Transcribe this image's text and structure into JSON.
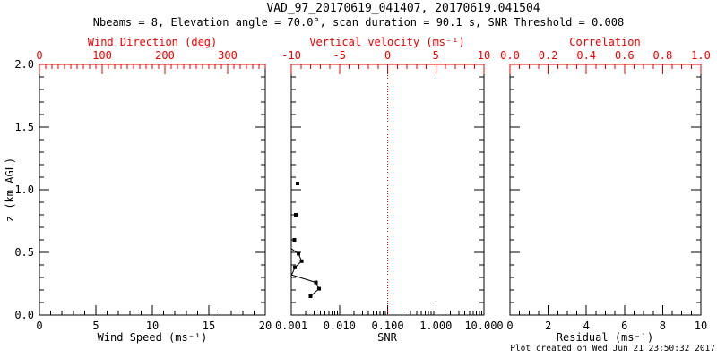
{
  "header": {
    "title": "VAD_97_20170619_041407, 20170619.041504",
    "subtitle": "Nbeams = 8, Elevation angle = 70.0°, scan duration = 90.1 s, SNR Threshold = 0.008"
  },
  "footer": {
    "created": "Plot created on Wed Jun 21 23:50:32 2017"
  },
  "colors": {
    "primary_axis": "#000000",
    "secondary_axis": "#ee0000",
    "background": "#ffffff",
    "data": "#000000"
  },
  "y_axis": {
    "label": "z (km AGL)",
    "min": 0,
    "max": 2,
    "tick_values": [
      0,
      0.5,
      1,
      1.5,
      2
    ],
    "tick_labels": [
      "0.0",
      "0.5",
      "1.0",
      "1.5",
      "2.0"
    ],
    "minor_step": 0.1
  },
  "chart_data": [
    {
      "panel": "wind",
      "type": "scatter",
      "bottom_axis": {
        "label": "Wind Speed (ms⁻¹)",
        "min": 0,
        "max": 20,
        "tick_values": [
          0,
          5,
          10,
          15,
          20
        ],
        "tick_labels": [
          "0",
          "5",
          "10",
          "15",
          "20"
        ],
        "minor_step": 1,
        "color": "#000000"
      },
      "top_axis": {
        "label": "Wind Direction (deg)",
        "min": 0,
        "max": 360,
        "tick_values": [
          0,
          100,
          200,
          300
        ],
        "tick_labels": [
          "0",
          "100",
          "200",
          "300"
        ],
        "minor_step": 10,
        "color": "#ee0000"
      },
      "marker_points": [],
      "line_points": []
    },
    {
      "panel": "snr",
      "type": "scatter-line",
      "bottom_axis": {
        "label": "SNR",
        "scale": "log",
        "min": 0.001,
        "max": 10,
        "tick_values": [
          0.001,
          0.01,
          0.1,
          1,
          10
        ],
        "tick_labels": [
          "0.001",
          "0.010",
          "0.100",
          "1.000",
          "10.000"
        ],
        "color": "#000000"
      },
      "top_axis": {
        "label": "Vertical velocity (ms⁻¹)",
        "min": -10,
        "max": 10,
        "tick_values": [
          -10,
          -5,
          0,
          5,
          10
        ],
        "tick_labels": [
          "-10",
          "-5",
          "0",
          "5",
          "10"
        ],
        "minor_step": 1,
        "color": "#ee0000"
      },
      "reference_line": {
        "snr": 0.1,
        "style": "dotted",
        "color": "#ee0000"
      },
      "marker_points": [
        {
          "z": 1.05,
          "snr": 0.00135
        },
        {
          "z": 0.8,
          "snr": 0.00124
        },
        {
          "z": 0.6,
          "snr": 0.00116
        },
        {
          "z": 0.49,
          "snr": 0.00141
        },
        {
          "z": 0.43,
          "snr": 0.00164
        },
        {
          "z": 0.38,
          "snr": 0.00119
        },
        {
          "z": 0.26,
          "snr": 0.00325
        },
        {
          "z": 0.21,
          "snr": 0.00377
        },
        {
          "z": 0.15,
          "snr": 0.00251
        }
      ],
      "line_points": [
        {
          "z": 0.53,
          "snr": 0.001
        },
        {
          "z": 0.49,
          "snr": 0.00141
        },
        {
          "z": 0.43,
          "snr": 0.00164
        },
        {
          "z": 0.38,
          "snr": 0.00119
        },
        {
          "z": 0.32,
          "snr": 0.00102
        },
        {
          "z": 0.26,
          "snr": 0.00325
        },
        {
          "z": 0.21,
          "snr": 0.00377
        },
        {
          "z": 0.15,
          "snr": 0.00251
        }
      ]
    },
    {
      "panel": "residual",
      "type": "scatter",
      "bottom_axis": {
        "label": "Residual (ms⁻¹)",
        "min": 0,
        "max": 10,
        "tick_values": [
          0,
          2,
          4,
          6,
          8,
          10
        ],
        "tick_labels": [
          "0",
          "2",
          "4",
          "6",
          "8",
          "10"
        ],
        "minor_step": 0.5,
        "color": "#000000"
      },
      "top_axis": {
        "label": "Correlation",
        "min": 0,
        "max": 1,
        "tick_values": [
          0,
          0.2,
          0.4,
          0.6,
          0.8,
          1
        ],
        "tick_labels": [
          "0.0",
          "0.2",
          "0.4",
          "0.6",
          "0.8",
          "1.0"
        ],
        "minor_step": 0.05,
        "color": "#ee0000"
      },
      "marker_points": [],
      "line_points": []
    }
  ]
}
